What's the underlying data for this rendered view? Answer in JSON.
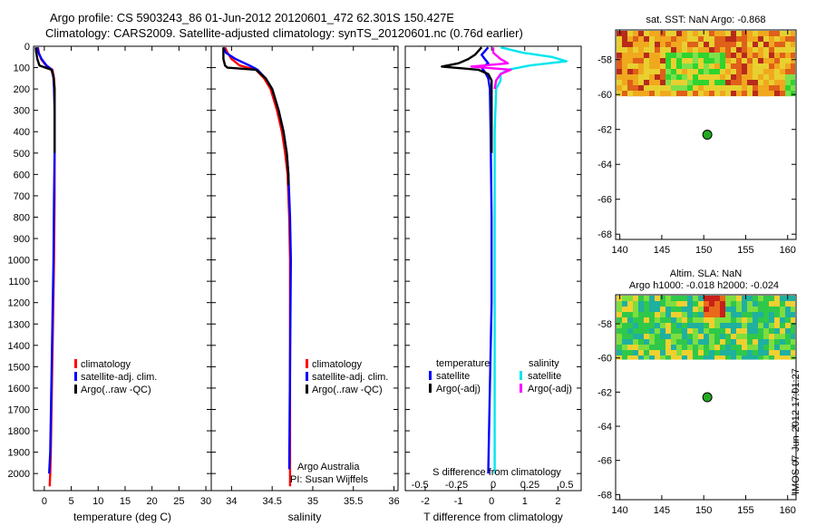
{
  "header": {
    "title_line1": "Argo profile: CS 5903243_86 01-Jun-2012 20120601_472 62.301S 150.427E",
    "title_line2": "Climatology: CARS2009. Satellite-adjusted climatology: synTS_20120601.nc (0.76d earlier)"
  },
  "colors": {
    "climatology": "#ff0000",
    "satellite": "#0000ff",
    "argo": "#000000",
    "sat_salinity": "#00e5ee",
    "argo_salinity": "#ff00ff",
    "float_marker": "#22aa22"
  },
  "depth_ticks": [
    0,
    100,
    200,
    300,
    400,
    500,
    600,
    700,
    800,
    900,
    1000,
    1100,
    1200,
    1300,
    1400,
    1500,
    1600,
    1700,
    1800,
    1900,
    2000
  ],
  "chart_data": [
    {
      "id": "temperature",
      "type": "line",
      "xlabel": "temperature (deg C)",
      "ylabel": "depth",
      "xlim": [
        -2,
        31
      ],
      "ylim": [
        2080,
        0
      ],
      "xticks": [
        0,
        5,
        10,
        15,
        20,
        25,
        30
      ],
      "xtick_labels": [
        "0",
        "5",
        "10",
        "15",
        "20",
        "25",
        "30"
      ],
      "legend": [
        "climatology",
        "satellite-adj. clim.",
        "Argo(..raw -QC)"
      ],
      "series": [
        {
          "name": "climatology",
          "depth": [
            5,
            30,
            60,
            90,
            110,
            150,
            200,
            300,
            500,
            700,
            1000,
            1300,
            1600,
            1900,
            2000,
            2060
          ],
          "values": [
            -1.2,
            -1.0,
            -0.6,
            0.3,
            1.5,
            1.8,
            1.9,
            1.9,
            1.9,
            1.9,
            1.8,
            1.6,
            1.4,
            1.2,
            1.1,
            1.0
          ]
        },
        {
          "name": "satellite-adj. clim.",
          "depth": [
            5,
            30,
            60,
            90,
            110,
            150,
            200,
            300,
            500,
            700,
            1000,
            1300,
            1600,
            1900,
            2000
          ],
          "values": [
            -1.3,
            -1.1,
            -0.5,
            0.4,
            1.4,
            1.7,
            1.8,
            1.9,
            1.9,
            1.8,
            1.7,
            1.5,
            1.3,
            1.1,
            0.9
          ]
        },
        {
          "name": "Argo(..raw -QC)",
          "depth": [
            5,
            30,
            60,
            90,
            110,
            140,
            200,
            300,
            400,
            500
          ],
          "values": [
            -1.6,
            -1.5,
            -1.3,
            -0.9,
            1.3,
            1.7,
            1.9,
            1.9,
            1.9,
            1.9
          ]
        }
      ]
    },
    {
      "id": "salinity",
      "type": "line",
      "xlabel": "salinity",
      "xlim": [
        33.75,
        36.05
      ],
      "ylim": [
        2080,
        0
      ],
      "xticks": [
        34,
        34.5,
        35,
        35.5,
        36
      ],
      "xtick_labels": [
        "34",
        "34.5",
        "35",
        "35.5",
        "36"
      ],
      "legend": [
        "climatology",
        "satellite-adj. clim.",
        "Argo(..raw -QC)"
      ],
      "annotation_line1": "Argo Australia",
      "annotation_line2": "PI: Susan Wijffels",
      "series": [
        {
          "name": "climatology",
          "depth": [
            5,
            30,
            60,
            90,
            110,
            150,
            200,
            300,
            400,
            500,
            600,
            800,
            1000,
            1500,
            2000,
            2060
          ],
          "values": [
            33.92,
            33.95,
            34.0,
            34.1,
            34.3,
            34.4,
            34.48,
            34.56,
            34.62,
            34.66,
            34.69,
            34.71,
            34.72,
            34.72,
            34.72,
            34.72
          ]
        },
        {
          "name": "satellite-adj. clim.",
          "depth": [
            5,
            30,
            60,
            90,
            110,
            150,
            200,
            300,
            400,
            500,
            600,
            800,
            1000,
            1500,
            1980
          ],
          "values": [
            33.9,
            33.93,
            34.05,
            34.22,
            34.32,
            34.42,
            34.5,
            34.58,
            34.64,
            34.68,
            34.7,
            34.72,
            34.73,
            34.72,
            34.71
          ]
        },
        {
          "name": "Argo(..raw -QC)",
          "depth": [
            5,
            30,
            60,
            90,
            100,
            110,
            150,
            200,
            300,
            400,
            500,
            600,
            650
          ],
          "values": [
            33.9,
            33.9,
            33.9,
            33.92,
            33.95,
            34.3,
            34.42,
            34.5,
            34.58,
            34.64,
            34.68,
            34.7,
            34.7
          ]
        }
      ]
    },
    {
      "id": "difference",
      "type": "line",
      "xlabel": "T difference from climatology",
      "xlabel_top": "S difference from climatology",
      "xlim": [
        -2.6,
        2.7
      ],
      "ylim": [
        2080,
        0
      ],
      "xticks": [
        -2,
        -1,
        0,
        1,
        2
      ],
      "xtick_labels": [
        "-2",
        "-1",
        "0",
        "1",
        "2"
      ],
      "s_tick_labels": [
        "-0.5",
        "-0.25",
        "0",
        "0.25",
        "0.5"
      ],
      "legend_temperature_title": "temperature",
      "legend_salinity_title": "salinity",
      "legend_temperature": [
        "satellite",
        "Argo(-adj)"
      ],
      "legend_salinity": [
        "satellite",
        "Argo(-adj)"
      ],
      "series": [
        {
          "name": "T satellite",
          "depth": [
            5,
            40,
            60,
            80,
            100,
            120,
            150,
            200,
            400,
            800,
            1200,
            1600,
            2000
          ],
          "values": [
            -0.1,
            -0.3,
            -0.2,
            -0.1,
            -0.3,
            -0.2,
            -0.1,
            -0.05,
            -0.03,
            0,
            0,
            -0.05,
            -0.1
          ]
        },
        {
          "name": "T Argo(-adj)",
          "depth": [
            5,
            40,
            60,
            80,
            95,
            110,
            130,
            160,
            250,
            400,
            500
          ],
          "values": [
            -0.3,
            -0.5,
            -0.7,
            -1.0,
            -1.5,
            -0.4,
            -0.1,
            0,
            0,
            0,
            0
          ]
        },
        {
          "name": "S satellite",
          "depth": [
            5,
            30,
            50,
            70,
            90,
            110,
            130,
            160,
            200,
            400,
            800,
            1200,
            1600,
            2000
          ],
          "values": [
            0.05,
            0.2,
            0.4,
            0.5,
            0.25,
            0.1,
            0.05,
            0.05,
            0.02,
            0.01,
            0.01,
            0.01,
            0.01,
            0.01
          ]
        },
        {
          "name": "S Argo(-adj)",
          "depth": [
            5,
            30,
            60,
            80,
            95,
            110,
            130,
            160,
            200
          ],
          "values": [
            0,
            0,
            0.05,
            0.1,
            -0.15,
            0.12,
            0.05,
            0.02,
            0.01
          ]
        }
      ]
    },
    {
      "id": "sst_map",
      "type": "heatmap",
      "title": "sat. SST: NaN Argo: -0.868",
      "xlim": [
        139.5,
        161
      ],
      "ylim": [
        -68.3,
        -56.3
      ],
      "xticks": [
        140,
        145,
        150,
        155,
        160
      ],
      "xtick_labels": [
        "140",
        "145",
        "150",
        "155",
        "160"
      ],
      "yticks": [
        -58,
        -60,
        -62,
        -64,
        -66,
        -68
      ],
      "ytick_labels": [
        "-58",
        "-60",
        "-62",
        "-64",
        "-66",
        "-68"
      ],
      "data_lat_min": -60.1,
      "marker": {
        "lon": 150.427,
        "lat": -62.301
      }
    },
    {
      "id": "sla_map",
      "type": "heatmap",
      "title_line1": "Altim. SLA: NaN",
      "title_line2": "Argo h1000: -0.018 h2000: -0.024",
      "xlim": [
        139.5,
        161
      ],
      "ylim": [
        -68.3,
        -56.3
      ],
      "xticks": [
        140,
        145,
        150,
        155,
        160
      ],
      "xtick_labels": [
        "140",
        "145",
        "150",
        "155",
        "160"
      ],
      "yticks": [
        -58,
        -60,
        -62,
        -64,
        -66,
        -68
      ],
      "ytick_labels": [
        "-58",
        "-60",
        "-62",
        "-64",
        "-66",
        "-68"
      ],
      "data_lat_min": -60.1,
      "marker": {
        "lon": 150.427,
        "lat": -62.301
      }
    }
  ],
  "footer": {
    "stamp": "IMOS 07-Jun-2012 17:01:27"
  }
}
